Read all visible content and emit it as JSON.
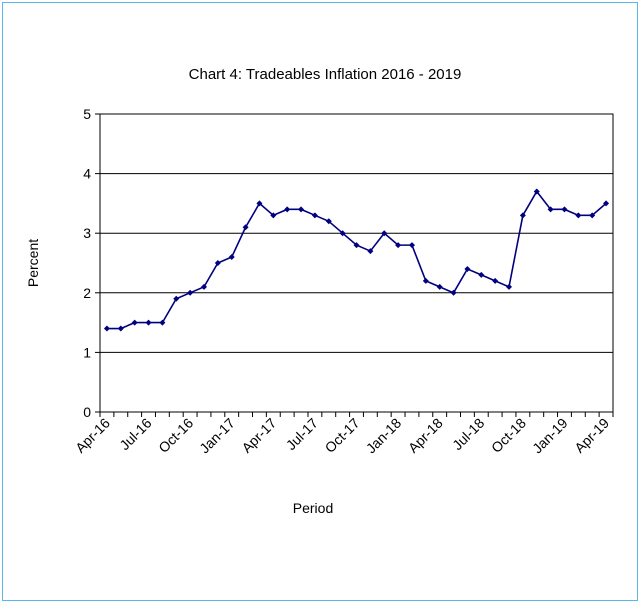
{
  "chart_data": {
    "type": "line",
    "title": "Chart 4: Tradeables Inflation 2016 - 2019",
    "xlabel": "Period",
    "ylabel": "Percent",
    "ylim": [
      0,
      5
    ],
    "yticks": [
      "0",
      "1",
      "2",
      "3",
      "4",
      "5"
    ],
    "grid": true,
    "legend": "none",
    "x_tick_labels": [
      "Apr-16",
      "Jul-16",
      "Oct-16",
      "Jan-17",
      "Apr-17",
      "Jul-17",
      "Oct-17",
      "Jan-18",
      "Apr-18",
      "Jul-18",
      "Oct-18",
      "Jan-19",
      "Apr-19"
    ],
    "x": [
      "Apr-16",
      "May-16",
      "Jun-16",
      "Jul-16",
      "Aug-16",
      "Sep-16",
      "Oct-16",
      "Nov-16",
      "Dec-16",
      "Jan-17",
      "Feb-17",
      "Mar-17",
      "Apr-17",
      "May-17",
      "Jun-17",
      "Jul-17",
      "Aug-17",
      "Sep-17",
      "Oct-17",
      "Nov-17",
      "Dec-17",
      "Jan-18",
      "Feb-18",
      "Mar-18",
      "Apr-18",
      "May-18",
      "Jun-18",
      "Jul-18",
      "Aug-18",
      "Sep-18",
      "Oct-18",
      "Nov-18",
      "Dec-18",
      "Jan-19",
      "Feb-19",
      "Mar-19",
      "Apr-19"
    ],
    "series": [
      {
        "color": "#000080",
        "values": [
          1.4,
          1.4,
          1.5,
          1.5,
          1.5,
          1.9,
          2.0,
          2.1,
          2.5,
          2.6,
          3.1,
          3.5,
          3.3,
          3.4,
          3.4,
          3.3,
          3.2,
          3.0,
          2.8,
          2.7,
          3.0,
          2.8,
          2.8,
          2.2,
          2.1,
          2.0,
          2.4,
          2.3,
          2.2,
          2.1,
          3.3,
          3.7,
          3.4,
          3.4,
          3.3,
          3.3,
          3.5
        ]
      }
    ]
  }
}
